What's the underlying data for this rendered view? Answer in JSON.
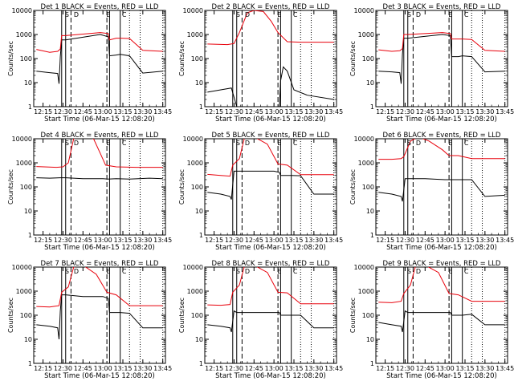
{
  "figure": {
    "ylabel": "Counts/sec",
    "xlabel": "Start Time (06-Mar-15 12:08:20)",
    "event_color": "#000000",
    "lld_color": "#e8000b",
    "x_tick_labels": [
      "12:15",
      "12:30",
      "12:45",
      "13:00",
      "13:15",
      "13:30",
      "13:45"
    ],
    "y_tick_labels": [
      "1",
      "10",
      "100",
      "1000",
      "10000"
    ],
    "marker_labels": {
      "saa_entry": "S",
      "flare_peak": "D",
      "gap": "E",
      "saa_exit": "C"
    }
  },
  "chart_data": [
    {
      "type": "line",
      "title": "Det 1 BLACK = Events, RED = LLD",
      "xlim": [
        "12:08",
        "13:47"
      ],
      "ylim": [
        1,
        10000
      ],
      "yscale": "log",
      "series": [
        {
          "name": "Events",
          "color": "#000000",
          "x": [
            "12:10",
            "12:20",
            "12:26",
            "12:27",
            "12:28",
            "12:29",
            "12:32",
            "12:58",
            "13:04",
            "13:05",
            "13:10",
            "13:13",
            "13:20",
            "13:30",
            "13:45"
          ],
          "values": [
            30,
            26,
            24,
            9,
            120,
            600,
            600,
            1000,
            800,
            130,
            140,
            150,
            130,
            25,
            30
          ]
        },
        {
          "name": "LLD",
          "color": "#e8000b",
          "x": [
            "12:10",
            "12:20",
            "12:26",
            "12:28",
            "12:29",
            "12:32",
            "12:58",
            "13:04",
            "13:05",
            "13:10",
            "13:13",
            "13:20",
            "13:30",
            "13:45"
          ],
          "values": [
            240,
            180,
            200,
            250,
            900,
            900,
            1200,
            1100,
            600,
            700,
            700,
            680,
            220,
            200
          ]
        }
      ]
    },
    {
      "type": "line",
      "title": "Det 2 BLACK = Events, RED = LLD",
      "xlim": [
        "12:08",
        "13:47"
      ],
      "ylim": [
        1,
        10000
      ],
      "yscale": "log",
      "series": [
        {
          "name": "Events",
          "color": "#000000",
          "x": [
            "12:10",
            "12:20",
            "12:28",
            "12:32",
            "12:45",
            "12:55",
            "13:00",
            "13:04",
            "13:05",
            "13:07",
            "13:10",
            "13:15",
            "13:25",
            "13:45"
          ],
          "values": [
            4,
            5,
            6,
            1,
            1,
            1,
            1,
            1,
            12,
            45,
            30,
            5,
            3,
            2
          ]
        },
        {
          "name": "LLD",
          "color": "#e8000b",
          "x": [
            "12:10",
            "12:25",
            "12:30",
            "12:34",
            "12:40",
            "12:45",
            "12:52",
            "12:58",
            "13:03",
            "13:10",
            "13:20",
            "13:45"
          ],
          "values": [
            400,
            380,
            420,
            1200,
            8000,
            10000,
            9000,
            3500,
            1200,
            500,
            480,
            480
          ]
        }
      ]
    },
    {
      "type": "line",
      "title": "Det 3 BLACK = Events, RED = LLD",
      "xlim": [
        "12:08",
        "13:47"
      ],
      "ylim": [
        1,
        10000
      ],
      "yscale": "log",
      "series": [
        {
          "name": "Events",
          "color": "#000000",
          "x": [
            "12:10",
            "12:20",
            "12:26",
            "12:27",
            "12:28",
            "12:29",
            "12:32",
            "12:58",
            "13:04",
            "13:05",
            "13:10",
            "13:13",
            "13:20",
            "13:30",
            "13:45"
          ],
          "values": [
            30,
            28,
            26,
            9,
            150,
            700,
            700,
            1000,
            900,
            120,
            120,
            130,
            120,
            28,
            30
          ]
        },
        {
          "name": "LLD",
          "color": "#e8000b",
          "x": [
            "12:10",
            "12:20",
            "12:26",
            "12:28",
            "12:29",
            "12:32",
            "12:58",
            "13:04",
            "13:05",
            "13:10",
            "13:13",
            "13:20",
            "13:30",
            "13:45"
          ],
          "values": [
            230,
            200,
            210,
            260,
            1000,
            1000,
            1200,
            1100,
            650,
            650,
            650,
            620,
            220,
            200
          ]
        }
      ]
    },
    {
      "type": "line",
      "title": "Det 4 BLACK = Events, RED = LLD",
      "xlim": [
        "12:08",
        "13:47"
      ],
      "ylim": [
        1,
        10000
      ],
      "yscale": "log",
      "series": [
        {
          "name": "Events",
          "color": "#000000",
          "x": [
            "12:10",
            "12:20",
            "12:28",
            "12:32",
            "12:45",
            "12:55",
            "13:00",
            "13:04",
            "13:10",
            "13:20",
            "13:35",
            "13:45"
          ],
          "values": [
            240,
            230,
            240,
            240,
            220,
            220,
            220,
            210,
            220,
            210,
            230,
            220
          ]
        },
        {
          "name": "LLD",
          "color": "#e8000b",
          "x": [
            "12:10",
            "12:25",
            "12:30",
            "12:34",
            "12:38",
            "12:45",
            "12:53",
            "12:58",
            "13:02",
            "13:10",
            "13:25",
            "13:45"
          ],
          "values": [
            700,
            650,
            680,
            1000,
            10000,
            12000,
            10000,
            2500,
            800,
            680,
            650,
            650
          ]
        }
      ]
    },
    {
      "type": "line",
      "title": "Det 5 BLACK = Events, RED = LLD",
      "xlim": [
        "12:08",
        "13:47"
      ],
      "ylim": [
        1,
        10000
      ],
      "yscale": "log",
      "series": [
        {
          "name": "Events",
          "color": "#000000",
          "x": [
            "12:10",
            "12:20",
            "12:27",
            "12:28",
            "12:30",
            "12:32",
            "12:45",
            "13:00",
            "13:04",
            "13:05",
            "13:13",
            "13:20",
            "13:30",
            "13:45"
          ],
          "values": [
            60,
            50,
            40,
            30,
            450,
            450,
            450,
            450,
            400,
            300,
            300,
            290,
            50,
            50
          ]
        },
        {
          "name": "LLD",
          "color": "#e8000b",
          "x": [
            "12:10",
            "12:20",
            "12:27",
            "12:29",
            "12:34",
            "12:38",
            "12:45",
            "12:55",
            "13:03",
            "13:10",
            "13:20",
            "13:45"
          ],
          "values": [
            330,
            300,
            280,
            800,
            1500,
            12000,
            12000,
            6000,
            900,
            800,
            320,
            320
          ]
        }
      ]
    },
    {
      "type": "line",
      "title": "Det 6 BLACK = Events, RED = LLD",
      "xlim": [
        "12:08",
        "13:47"
      ],
      "ylim": [
        1,
        10000
      ],
      "yscale": "log",
      "series": [
        {
          "name": "Events",
          "color": "#000000",
          "x": [
            "12:10",
            "12:20",
            "12:27",
            "12:28",
            "12:30",
            "12:45",
            "13:00",
            "13:04",
            "13:05",
            "13:13",
            "13:20",
            "13:30",
            "13:45"
          ],
          "values": [
            60,
            50,
            40,
            25,
            220,
            220,
            200,
            200,
            200,
            200,
            200,
            40,
            45
          ]
        },
        {
          "name": "LLD",
          "color": "#e8000b",
          "x": [
            "12:10",
            "12:20",
            "12:27",
            "12:29",
            "12:34",
            "12:40",
            "12:48",
            "12:58",
            "13:03",
            "13:10",
            "13:20",
            "13:45"
          ],
          "values": [
            1400,
            1400,
            1500,
            1800,
            8000,
            12000,
            8000,
            3500,
            2000,
            2000,
            1500,
            1500
          ]
        }
      ]
    },
    {
      "type": "line",
      "title": "Det 7 BLACK = Events, RED = LLD",
      "xlim": [
        "12:08",
        "13:47"
      ],
      "ylim": [
        1,
        10000
      ],
      "yscale": "log",
      "series": [
        {
          "name": "Events",
          "color": "#000000",
          "x": [
            "12:10",
            "12:20",
            "12:26",
            "12:27",
            "12:28",
            "12:29",
            "12:32",
            "12:45",
            "13:00",
            "13:04",
            "13:05",
            "13:13",
            "13:20",
            "13:30",
            "13:45"
          ],
          "values": [
            40,
            35,
            30,
            10,
            150,
            700,
            700,
            600,
            600,
            500,
            130,
            130,
            120,
            30,
            30
          ]
        },
        {
          "name": "LLD",
          "color": "#e8000b",
          "x": [
            "12:10",
            "12:20",
            "12:27",
            "12:29",
            "12:34",
            "12:38",
            "12:45",
            "12:55",
            "13:03",
            "13:10",
            "13:20",
            "13:45"
          ],
          "values": [
            230,
            220,
            250,
            900,
            1500,
            10000,
            12000,
            5000,
            900,
            700,
            250,
            250
          ]
        }
      ]
    },
    {
      "type": "line",
      "title": "Det 8 BLACK = Events, RED = LLD",
      "xlim": [
        "12:08",
        "13:47"
      ],
      "ylim": [
        1,
        10000
      ],
      "yscale": "log",
      "series": [
        {
          "name": "Events",
          "color": "#000000",
          "x": [
            "12:10",
            "12:20",
            "12:27",
            "12:28",
            "12:30",
            "12:32",
            "12:45",
            "13:00",
            "13:04",
            "13:05",
            "13:13",
            "13:20",
            "13:30",
            "13:45"
          ],
          "values": [
            40,
            35,
            30,
            20,
            150,
            130,
            130,
            130,
            130,
            100,
            100,
            100,
            30,
            30
          ]
        },
        {
          "name": "LLD",
          "color": "#e8000b",
          "x": [
            "12:10",
            "12:20",
            "12:27",
            "12:29",
            "12:34",
            "12:38",
            "12:45",
            "12:55",
            "13:03",
            "13:10",
            "13:20",
            "13:45"
          ],
          "values": [
            270,
            260,
            280,
            900,
            1800,
            12000,
            12000,
            6000,
            900,
            850,
            300,
            300
          ]
        }
      ]
    },
    {
      "type": "line",
      "title": "Det 9 BLACK = Events, RED = LLD",
      "xlim": [
        "12:08",
        "13:47"
      ],
      "ylim": [
        1,
        10000
      ],
      "yscale": "log",
      "series": [
        {
          "name": "Events",
          "color": "#000000",
          "x": [
            "12:10",
            "12:20",
            "12:27",
            "12:28",
            "12:30",
            "12:32",
            "12:45",
            "13:00",
            "13:04",
            "13:05",
            "13:13",
            "13:20",
            "13:30",
            "13:45"
          ],
          "values": [
            50,
            40,
            35,
            20,
            150,
            130,
            130,
            130,
            130,
            100,
            100,
            110,
            40,
            40
          ]
        },
        {
          "name": "LLD",
          "color": "#e8000b",
          "x": [
            "12:10",
            "12:20",
            "12:27",
            "12:29",
            "12:34",
            "12:38",
            "12:45",
            "12:55",
            "13:03",
            "13:10",
            "13:20",
            "13:45"
          ],
          "values": [
            350,
            330,
            380,
            800,
            1800,
            12000,
            12000,
            6000,
            800,
            700,
            380,
            380
          ]
        }
      ]
    }
  ]
}
